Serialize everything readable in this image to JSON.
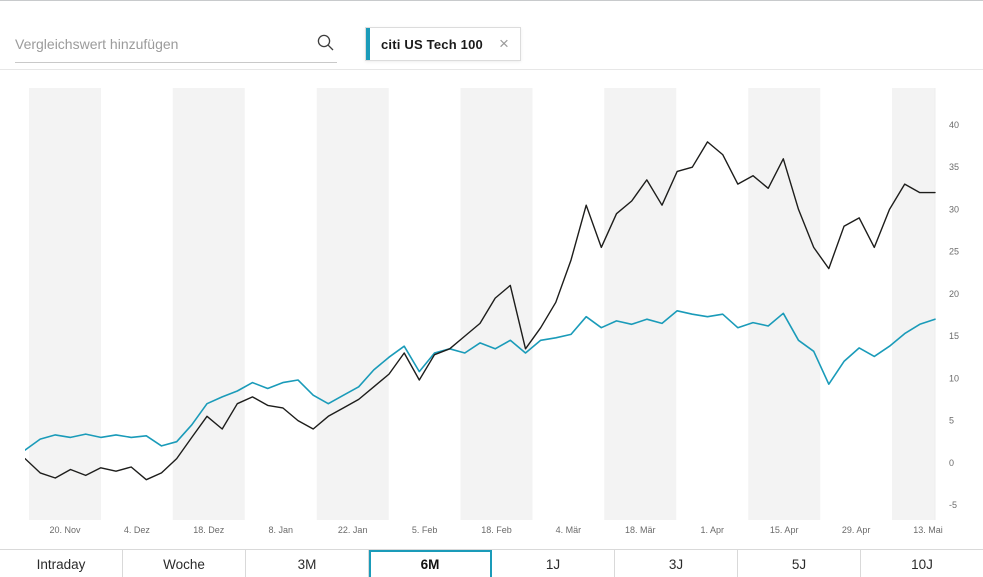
{
  "colors": {
    "accent": "#1a9bb9",
    "line_primary": "#1d1d1b",
    "stripe": "#f3f3f3",
    "axis_text": "#6b6b6b",
    "border": "#d9d9d9"
  },
  "search": {
    "placeholder": "Vergleichswert hinzufügen"
  },
  "comparison_chip": {
    "label": "citi US Tech 100",
    "close_icon": "×"
  },
  "range_tabs": [
    {
      "label": "Intraday",
      "selected": false
    },
    {
      "label": "Woche",
      "selected": false
    },
    {
      "label": "3M",
      "selected": false
    },
    {
      "label": "6M",
      "selected": true
    },
    {
      "label": "1J",
      "selected": false
    },
    {
      "label": "3J",
      "selected": false
    },
    {
      "label": "5J",
      "selected": false
    },
    {
      "label": "10J",
      "selected": false
    }
  ],
  "chart_data": {
    "type": "line",
    "title": "",
    "grid": "vertical-stripes",
    "legend": "none",
    "y_axis_position": "right",
    "ylim": [
      -5,
      40
    ],
    "y_ticks": [
      40,
      35,
      30,
      25,
      20,
      15,
      10,
      5,
      0,
      -5
    ],
    "x_tick_labels": [
      "20. Nov",
      "4. Dez",
      "18. Dez",
      "8. Jan",
      "22. Jan",
      "5. Feb",
      "18. Feb",
      "4. Mär",
      "18. Mär",
      "1. Apr",
      "15. Apr",
      "29. Apr",
      "13. Mai"
    ],
    "series": [
      {
        "name": "",
        "color": "#1d1d1b",
        "values": [
          0.5,
          -1.2,
          -1.8,
          -0.8,
          -1.5,
          -0.6,
          -1.0,
          -0.5,
          -2.0,
          -1.2,
          0.5,
          3.0,
          5.5,
          4.0,
          7.0,
          7.8,
          6.8,
          6.5,
          5.0,
          4.0,
          5.5,
          6.5,
          7.5,
          9.0,
          10.5,
          13.0,
          9.8,
          12.8,
          13.5,
          15.0,
          16.5,
          19.5,
          21.0,
          13.5,
          16.0,
          19.0,
          24.0,
          30.5,
          25.5,
          29.5,
          31.0,
          33.5,
          30.5,
          34.5,
          35.0,
          38.0,
          36.5,
          33.0,
          34.0,
          32.5,
          36.0,
          30.0,
          25.5,
          23.0,
          28.0,
          29.0,
          25.5,
          30.0,
          33.0,
          32.0,
          32.0
        ]
      },
      {
        "name": "citi US Tech 100",
        "color": "#1a9bb9",
        "values": [
          1.5,
          2.8,
          3.3,
          3.0,
          3.4,
          3.0,
          3.3,
          3.0,
          3.2,
          2.0,
          2.5,
          4.5,
          7.0,
          7.8,
          8.5,
          9.5,
          8.8,
          9.5,
          9.8,
          8.0,
          7.0,
          8.0,
          9.0,
          11.0,
          12.5,
          13.8,
          10.8,
          13.0,
          13.5,
          13.0,
          14.2,
          13.5,
          14.5,
          13.0,
          14.5,
          14.8,
          15.2,
          17.3,
          16.0,
          16.8,
          16.4,
          17.0,
          16.5,
          18.0,
          17.6,
          17.3,
          17.6,
          16.0,
          16.6,
          16.2,
          17.7,
          14.5,
          13.2,
          9.3,
          12.0,
          13.6,
          12.6,
          13.8,
          15.3,
          16.4,
          17.0
        ]
      }
    ]
  }
}
